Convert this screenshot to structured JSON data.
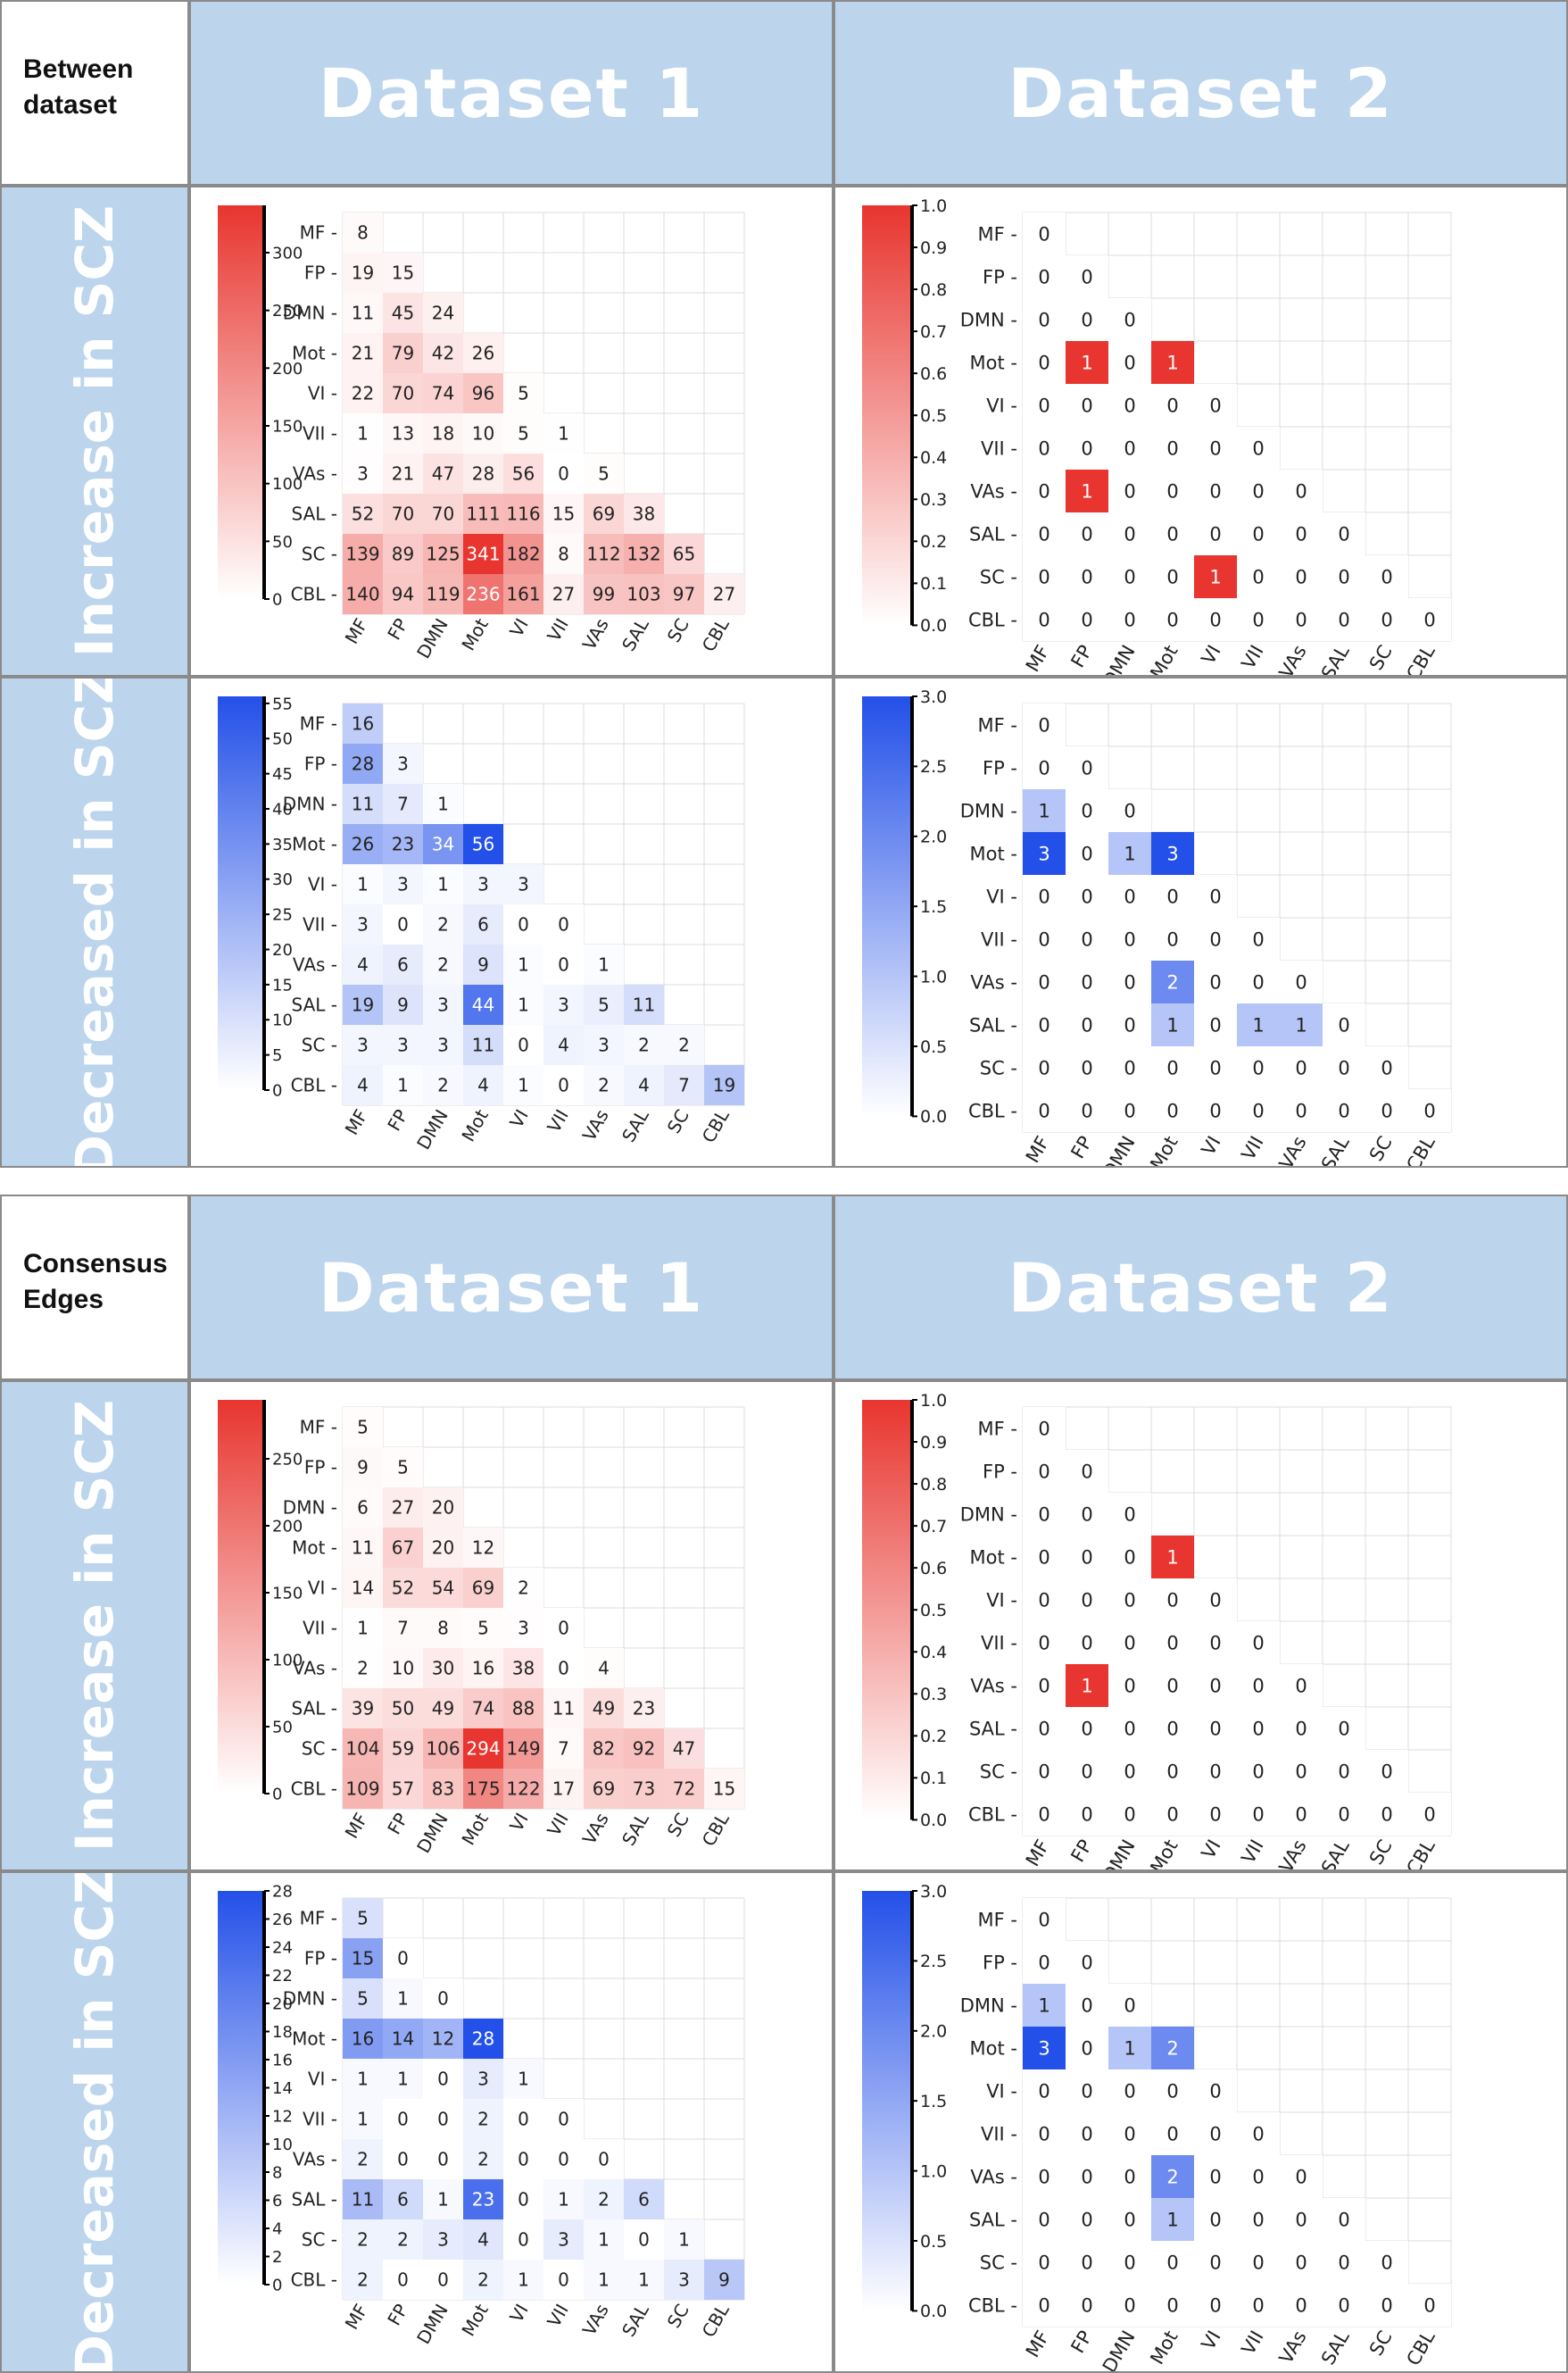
{
  "labels": {
    "corner_top": [
      "Between",
      "dataset"
    ],
    "corner_bottom": [
      "Consensus",
      "Edges"
    ],
    "dataset1": "Dataset 1",
    "dataset2": "Dataset 2",
    "increase": "Increase in SCZ",
    "decrease": "Decreased in SCZ"
  },
  "colors": {
    "red": "#e8352f",
    "blue": "#2350e8",
    "grid": "#dcdcdc",
    "text": "#222222"
  },
  "chart_data": [
    {
      "id": "between-d1-increase",
      "type": "heatmap",
      "palette": "red",
      "categories": [
        "MF",
        "FP",
        "DMN",
        "Mot",
        "VI",
        "VII",
        "VAs",
        "SAL",
        "SC",
        "CBL"
      ],
      "vmin": 0,
      "vmax": 341,
      "colorbar_ticks": [
        0,
        50,
        100,
        150,
        200,
        250,
        300
      ],
      "rows": [
        [
          8
        ],
        [
          19,
          15
        ],
        [
          11,
          45,
          24
        ],
        [
          21,
          79,
          42,
          26
        ],
        [
          22,
          70,
          74,
          96,
          5
        ],
        [
          1,
          13,
          18,
          10,
          5,
          1
        ],
        [
          3,
          21,
          47,
          28,
          56,
          0,
          5
        ],
        [
          52,
          70,
          70,
          111,
          116,
          15,
          69,
          38
        ],
        [
          139,
          89,
          125,
          341,
          182,
          8,
          112,
          132,
          65
        ],
        [
          140,
          94,
          119,
          236,
          161,
          27,
          99,
          103,
          97,
          27
        ]
      ]
    },
    {
      "id": "between-d2-increase",
      "type": "heatmap",
      "palette": "red",
      "categories": [
        "MF",
        "FP",
        "DMN",
        "Mot",
        "VI",
        "VII",
        "VAs",
        "SAL",
        "SC",
        "CBL"
      ],
      "vmin": 0,
      "vmax": 1,
      "colorbar_ticks": [
        "0.0",
        "0.1",
        "0.2",
        "0.3",
        "0.4",
        "0.5",
        "0.6",
        "0.7",
        "0.8",
        "0.9",
        "1.0"
      ],
      "rows": [
        [
          0
        ],
        [
          0,
          0
        ],
        [
          0,
          0,
          0
        ],
        [
          0,
          1,
          0,
          1
        ],
        [
          0,
          0,
          0,
          0,
          0
        ],
        [
          0,
          0,
          0,
          0,
          0,
          0
        ],
        [
          0,
          1,
          0,
          0,
          0,
          0,
          0
        ],
        [
          0,
          0,
          0,
          0,
          0,
          0,
          0,
          0
        ],
        [
          0,
          0,
          0,
          0,
          1,
          0,
          0,
          0,
          0
        ],
        [
          0,
          0,
          0,
          0,
          0,
          0,
          0,
          0,
          0,
          0
        ]
      ]
    },
    {
      "id": "between-d1-decrease",
      "type": "heatmap",
      "palette": "blue",
      "categories": [
        "MF",
        "FP",
        "DMN",
        "Mot",
        "VI",
        "VII",
        "VAs",
        "SAL",
        "SC",
        "CBL"
      ],
      "vmin": 0,
      "vmax": 56,
      "colorbar_ticks": [
        0,
        5,
        10,
        15,
        20,
        25,
        30,
        35,
        40,
        45,
        50,
        55
      ],
      "rows": [
        [
          16
        ],
        [
          28,
          3
        ],
        [
          11,
          7,
          1
        ],
        [
          26,
          23,
          34,
          56
        ],
        [
          1,
          3,
          1,
          3,
          3
        ],
        [
          3,
          0,
          2,
          6,
          0,
          0
        ],
        [
          4,
          6,
          2,
          9,
          1,
          0,
          1
        ],
        [
          19,
          9,
          3,
          44,
          1,
          3,
          5,
          11
        ],
        [
          3,
          3,
          3,
          11,
          0,
          4,
          3,
          2,
          2
        ],
        [
          4,
          1,
          2,
          4,
          1,
          0,
          2,
          4,
          7,
          19
        ]
      ]
    },
    {
      "id": "between-d2-decrease",
      "type": "heatmap",
      "palette": "blue",
      "categories": [
        "MF",
        "FP",
        "DMN",
        "Mot",
        "VI",
        "VII",
        "VAs",
        "SAL",
        "SC",
        "CBL"
      ],
      "vmin": 0,
      "vmax": 3,
      "colorbar_ticks": [
        "0.0",
        "0.5",
        "1.0",
        "1.5",
        "2.0",
        "2.5",
        "3.0"
      ],
      "rows": [
        [
          0
        ],
        [
          0,
          0
        ],
        [
          1,
          0,
          0
        ],
        [
          3,
          0,
          1,
          3
        ],
        [
          0,
          0,
          0,
          0,
          0
        ],
        [
          0,
          0,
          0,
          0,
          0,
          0
        ],
        [
          0,
          0,
          0,
          2,
          0,
          0,
          0
        ],
        [
          0,
          0,
          0,
          1,
          0,
          1,
          1,
          0
        ],
        [
          0,
          0,
          0,
          0,
          0,
          0,
          0,
          0,
          0
        ],
        [
          0,
          0,
          0,
          0,
          0,
          0,
          0,
          0,
          0,
          0
        ]
      ]
    },
    {
      "id": "consensus-d1-increase",
      "type": "heatmap",
      "palette": "red",
      "categories": [
        "MF",
        "FP",
        "DMN",
        "Mot",
        "VI",
        "VII",
        "VAs",
        "SAL",
        "SC",
        "CBL"
      ],
      "vmin": 0,
      "vmax": 294,
      "colorbar_ticks": [
        0,
        50,
        100,
        150,
        200,
        250
      ],
      "rows": [
        [
          5
        ],
        [
          9,
          5
        ],
        [
          6,
          27,
          20
        ],
        [
          11,
          67,
          20,
          12
        ],
        [
          14,
          52,
          54,
          69,
          2
        ],
        [
          1,
          7,
          8,
          5,
          3,
          0
        ],
        [
          2,
          10,
          30,
          16,
          38,
          0,
          4
        ],
        [
          39,
          50,
          49,
          74,
          88,
          11,
          49,
          23
        ],
        [
          104,
          59,
          106,
          294,
          149,
          7,
          82,
          92,
          47
        ],
        [
          109,
          57,
          83,
          175,
          122,
          17,
          69,
          73,
          72,
          15
        ]
      ]
    },
    {
      "id": "consensus-d2-increase",
      "type": "heatmap",
      "palette": "red",
      "categories": [
        "MF",
        "FP",
        "DMN",
        "Mot",
        "VI",
        "VII",
        "VAs",
        "SAL",
        "SC",
        "CBL"
      ],
      "vmin": 0,
      "vmax": 1,
      "colorbar_ticks": [
        "0.0",
        "0.1",
        "0.2",
        "0.3",
        "0.4",
        "0.5",
        "0.6",
        "0.7",
        "0.8",
        "0.9",
        "1.0"
      ],
      "rows": [
        [
          0
        ],
        [
          0,
          0
        ],
        [
          0,
          0,
          0
        ],
        [
          0,
          0,
          0,
          1
        ],
        [
          0,
          0,
          0,
          0,
          0
        ],
        [
          0,
          0,
          0,
          0,
          0,
          0
        ],
        [
          0,
          1,
          0,
          0,
          0,
          0,
          0
        ],
        [
          0,
          0,
          0,
          0,
          0,
          0,
          0,
          0
        ],
        [
          0,
          0,
          0,
          0,
          0,
          0,
          0,
          0,
          0
        ],
        [
          0,
          0,
          0,
          0,
          0,
          0,
          0,
          0,
          0,
          0
        ]
      ]
    },
    {
      "id": "consensus-d1-decrease",
      "type": "heatmap",
      "palette": "blue",
      "categories": [
        "MF",
        "FP",
        "DMN",
        "Mot",
        "VI",
        "VII",
        "VAs",
        "SAL",
        "SC",
        "CBL"
      ],
      "vmin": 0,
      "vmax": 28,
      "colorbar_ticks": [
        0,
        2,
        4,
        6,
        8,
        10,
        12,
        14,
        16,
        18,
        20,
        22,
        24,
        26,
        28
      ],
      "rows": [
        [
          5
        ],
        [
          15,
          0
        ],
        [
          5,
          1,
          0
        ],
        [
          16,
          14,
          12,
          28
        ],
        [
          1,
          1,
          0,
          3,
          1
        ],
        [
          1,
          0,
          0,
          2,
          0,
          0
        ],
        [
          2,
          0,
          0,
          2,
          0,
          0,
          0
        ],
        [
          11,
          6,
          1,
          23,
          0,
          1,
          2,
          6
        ],
        [
          2,
          2,
          3,
          4,
          0,
          3,
          1,
          0,
          1
        ],
        [
          2,
          0,
          0,
          2,
          1,
          0,
          1,
          1,
          3,
          9
        ]
      ]
    },
    {
      "id": "consensus-d2-decrease",
      "type": "heatmap",
      "palette": "blue",
      "categories": [
        "MF",
        "FP",
        "DMN",
        "Mot",
        "VI",
        "VII",
        "VAs",
        "SAL",
        "SC",
        "CBL"
      ],
      "vmin": 0,
      "vmax": 3,
      "colorbar_ticks": [
        "0.0",
        "0.5",
        "1.0",
        "1.5",
        "2.0",
        "2.5",
        "3.0"
      ],
      "rows": [
        [
          0
        ],
        [
          0,
          0
        ],
        [
          1,
          0,
          0
        ],
        [
          3,
          0,
          1,
          2
        ],
        [
          0,
          0,
          0,
          0,
          0
        ],
        [
          0,
          0,
          0,
          0,
          0,
          0
        ],
        [
          0,
          0,
          0,
          2,
          0,
          0,
          0
        ],
        [
          0,
          0,
          0,
          1,
          0,
          0,
          0,
          0
        ],
        [
          0,
          0,
          0,
          0,
          0,
          0,
          0,
          0,
          0
        ],
        [
          0,
          0,
          0,
          0,
          0,
          0,
          0,
          0,
          0,
          0
        ]
      ]
    }
  ]
}
